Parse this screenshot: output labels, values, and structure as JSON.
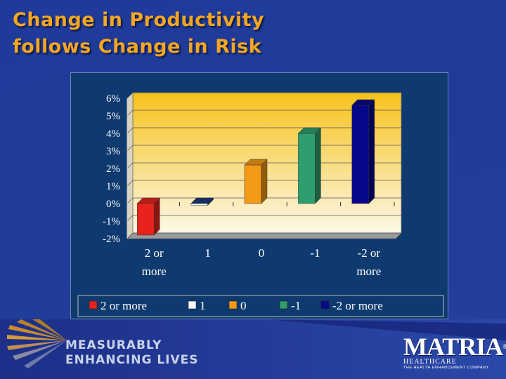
{
  "slide": {
    "title_line1": "Change in Productivity",
    "title_line2": "follows Change in Risk"
  },
  "footer": {
    "tagline_line1": "MEASURABLY",
    "tagline_line2": "ENHANCING LIVES",
    "brand_name": "MATRIA",
    "brand_registered": "®",
    "brand_sub1": "HEALTHCARE",
    "brand_sub2": "THE HEALTH ENHANCEMENT COMPANY"
  },
  "colors": {
    "plot_top": "#f6c21c",
    "plot_bottom": "#fdf8e8",
    "series": [
      "#e8231d",
      "#ffffff",
      "#f59a16",
      "#2f9e6e",
      "#07078a"
    ]
  },
  "chart_data": {
    "type": "bar",
    "title": "",
    "xlabel": "",
    "ylabel": "",
    "categories": [
      [
        "2 or",
        "more"
      ],
      [
        "1"
      ],
      [
        "0"
      ],
      [
        "-1"
      ],
      [
        "-2 or",
        "more"
      ]
    ],
    "values": [
      -1.8,
      -0.1,
      2.2,
      4.0,
      5.6
    ],
    "ylim": [
      -2,
      6
    ],
    "y_ticks": [
      "-2%",
      "-1%",
      "0%",
      "1%",
      "2%",
      "3%",
      "4%",
      "5%",
      "6%"
    ],
    "legend": [
      "2 or more",
      "1",
      "0",
      "-1",
      "-2 or more"
    ],
    "legend_position": "bottom",
    "grid": true
  }
}
